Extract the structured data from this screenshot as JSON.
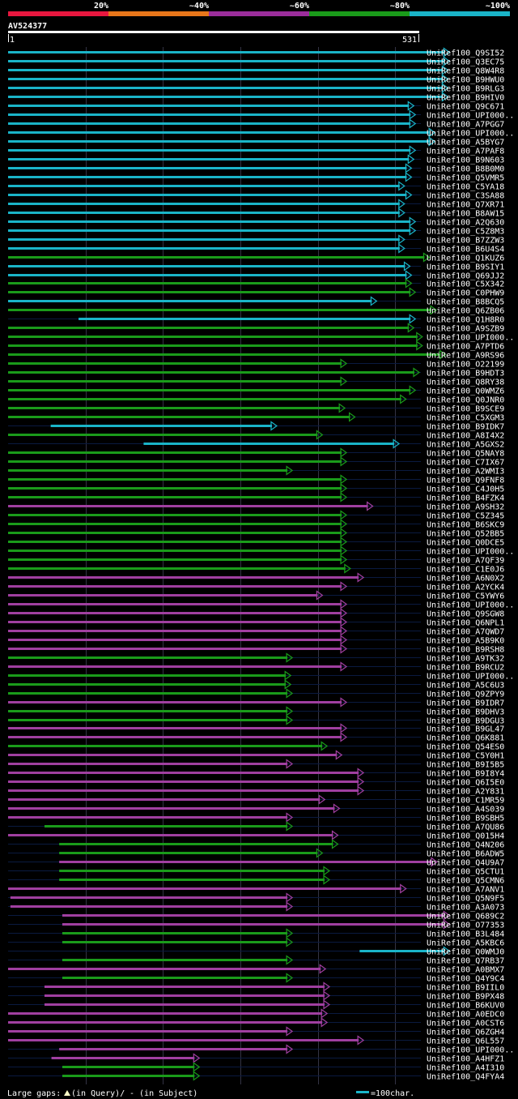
{
  "legend": {
    "labels": [
      "20%",
      "~40%",
      "~60%",
      "~80%",
      "~100%"
    ],
    "colors": [
      "#e8173f",
      "#e8761a",
      "#9b2d9b",
      "#1a9b1a",
      "#1ab4c8"
    ]
  },
  "query": {
    "id": "AV524377",
    "start": "1",
    "end": "531"
  },
  "palette": {
    "cyan": "#1ab4c8",
    "green": "#1a9b1a",
    "purple": "#a03fa0",
    "gap": "#ffffc8",
    "grid": "#334",
    "row_line": "#0a1a40"
  },
  "footer": {
    "large_gaps": "Large gaps:",
    "in_query": "(in Query)/",
    "in_subject": "- (in Subject)",
    "scale": "=100char."
  },
  "hits": [
    {
      "name": "UniRef100_Q9SI52",
      "color": "cyan",
      "start": 1,
      "end": 571
    },
    {
      "name": "UniRef100_Q3EC75",
      "color": "cyan",
      "start": 1,
      "end": 571
    },
    {
      "name": "UniRef100_Q8W4R8",
      "color": "cyan",
      "start": 1,
      "end": 569
    },
    {
      "name": "UniRef100_B9HWU0",
      "color": "cyan",
      "start": 1,
      "end": 569
    },
    {
      "name": "UniRef100_B9RLG3",
      "color": "cyan",
      "start": 1,
      "end": 569
    },
    {
      "name": "UniRef100_B9HIV0",
      "color": "cyan",
      "start": 1,
      "end": 569
    },
    {
      "name": "UniRef100_Q9C671",
      "color": "cyan",
      "start": 1,
      "end": 525
    },
    {
      "name": "UniRef100_UPI000..",
      "color": "cyan",
      "start": 1,
      "end": 527
    },
    {
      "name": "UniRef100_A7PGG7",
      "color": "cyan",
      "start": 1,
      "end": 527
    },
    {
      "name": "UniRef100_UPI000..",
      "color": "cyan",
      "start": 1,
      "end": 552
    },
    {
      "name": "UniRef100_A5BYG7",
      "color": "cyan",
      "start": 1,
      "end": 552
    },
    {
      "name": "UniRef100_A7PAF8",
      "color": "cyan",
      "start": 1,
      "end": 527
    },
    {
      "name": "UniRef100_B9N603",
      "color": "cyan",
      "start": 1,
      "end": 525
    },
    {
      "name": "UniRef100_B8B0M0",
      "color": "cyan",
      "start": 1,
      "end": 522
    },
    {
      "name": "UniRef100_Q5VMR5",
      "color": "cyan",
      "start": 1,
      "end": 522
    },
    {
      "name": "UniRef100_C5YA18",
      "color": "cyan",
      "start": 1,
      "end": 513
    },
    {
      "name": "UniRef100_C3SA88",
      "color": "cyan",
      "start": 1,
      "end": 522
    },
    {
      "name": "UniRef100_Q7XR71",
      "color": "cyan",
      "start": 1,
      "end": 513
    },
    {
      "name": "UniRef100_B8AW15",
      "color": "cyan",
      "start": 1,
      "end": 513
    },
    {
      "name": "UniRef100_A2Q630",
      "color": "cyan",
      "start": 1,
      "end": 527
    },
    {
      "name": "UniRef100_C5Z8M3",
      "color": "cyan",
      "start": 1,
      "end": 527
    },
    {
      "name": "UniRef100_B7ZZW3",
      "color": "cyan",
      "start": 1,
      "end": 513
    },
    {
      "name": "UniRef100_B6U4S4",
      "color": "cyan",
      "start": 1,
      "end": 513
    },
    {
      "name": "UniRef100_Q1KUZ6",
      "color": "green",
      "start": 1,
      "end": 545
    },
    {
      "name": "UniRef100_B9SIY1",
      "color": "cyan",
      "start": 1,
      "end": 520
    },
    {
      "name": "UniRef100_Q69JJ2",
      "color": "cyan",
      "start": 1,
      "end": 522
    },
    {
      "name": "UniRef100_C5X342",
      "color": "green",
      "start": 1,
      "end": 522
    },
    {
      "name": "UniRef100_C0PHW9",
      "color": "green",
      "start": 1,
      "end": 527
    },
    {
      "name": "UniRef100_B8BCQ5",
      "color": "cyan",
      "start": 1,
      "end": 477
    },
    {
      "name": "UniRef100_Q6ZB06",
      "color": "green",
      "start": 1,
      "end": 554
    },
    {
      "name": "UniRef100_Q1H8R0",
      "color": "cyan",
      "start": 92,
      "end": 527
    },
    {
      "name": "UniRef100_A9SZB9",
      "color": "green",
      "start": 1,
      "end": 525
    },
    {
      "name": "UniRef100_UPI000..",
      "color": "green",
      "start": 1,
      "end": 536
    },
    {
      "name": "UniRef100_A7PTD6",
      "color": "green",
      "start": 1,
      "end": 536
    },
    {
      "name": "UniRef100_A9RS96",
      "color": "green",
      "start": 1,
      "end": 566
    },
    {
      "name": "UniRef100_O22199",
      "color": "green",
      "start": 1,
      "end": 438
    },
    {
      "name": "UniRef100_B9HDT3",
      "color": "green",
      "start": 1,
      "end": 532
    },
    {
      "name": "UniRef100_Q8RY38",
      "color": "green",
      "start": 1,
      "end": 438
    },
    {
      "name": "UniRef100_Q0WMZ6",
      "color": "green",
      "start": 1,
      "end": 527
    },
    {
      "name": "UniRef100_Q0JNR0",
      "color": "green",
      "start": 1,
      "end": 515
    },
    {
      "name": "UniRef100_B9SCE9",
      "color": "green",
      "start": 1,
      "end": 436
    },
    {
      "name": "UniRef100_C5XGM3",
      "color": "green",
      "start": 1,
      "end": 449
    },
    {
      "name": "UniRef100_B9IDK7",
      "color": "cyan",
      "start": 56,
      "end": 348
    },
    {
      "name": "UniRef100_A8I4X2",
      "color": "green",
      "start": 1,
      "end": 407
    },
    {
      "name": "UniRef100_A5GXS2",
      "color": "cyan",
      "start": 176,
      "end": 506
    },
    {
      "name": "UniRef100_Q5NAY8",
      "color": "green",
      "start": 1,
      "end": 438
    },
    {
      "name": "UniRef100_C7IX67",
      "color": "green",
      "start": 1,
      "end": 438
    },
    {
      "name": "UniRef100_A2WMI3",
      "color": "green",
      "start": 1,
      "end": 368
    },
    {
      "name": "UniRef100_Q9FNF8",
      "color": "green",
      "start": 1,
      "end": 438
    },
    {
      "name": "UniRef100_C4J0H5",
      "color": "green",
      "start": 1,
      "end": 438
    },
    {
      "name": "UniRef100_B4FZK4",
      "color": "green",
      "start": 1,
      "end": 438
    },
    {
      "name": "UniRef100_A9SH32",
      "color": "purple",
      "start": 1,
      "end": 472
    },
    {
      "name": "UniRef100_C5Z345",
      "color": "green",
      "start": 1,
      "end": 438
    },
    {
      "name": "UniRef100_B6SKC9",
      "color": "green",
      "start": 1,
      "end": 438
    },
    {
      "name": "UniRef100_Q52BB5",
      "color": "green",
      "start": 1,
      "end": 438
    },
    {
      "name": "UniRef100_Q0DCE5",
      "color": "green",
      "start": 1,
      "end": 438
    },
    {
      "name": "UniRef100_UPI000..",
      "color": "green",
      "start": 1,
      "end": 438
    },
    {
      "name": "UniRef100_A7QF39",
      "color": "green",
      "start": 1,
      "end": 438
    },
    {
      "name": "UniRef100_C1E0J6",
      "color": "green",
      "start": 1,
      "end": 443
    },
    {
      "name": "UniRef100_A6N0X2",
      "color": "purple",
      "start": 1,
      "end": 460
    },
    {
      "name": "UniRef100_A2YCK4",
      "color": "purple",
      "start": 1,
      "end": 438
    },
    {
      "name": "UniRef100_C5YWY6",
      "color": "purple",
      "start": 1,
      "end": 407
    },
    {
      "name": "UniRef100_UPI000..",
      "color": "purple",
      "start": 1,
      "end": 438
    },
    {
      "name": "UniRef100_Q9SGW8",
      "color": "purple",
      "start": 1,
      "end": 438
    },
    {
      "name": "UniRef100_Q6NPL1",
      "color": "purple",
      "start": 1,
      "end": 438
    },
    {
      "name": "UniRef100_A7QWD7",
      "color": "purple",
      "start": 1,
      "end": 438
    },
    {
      "name": "UniRef100_A5B9K0",
      "color": "purple",
      "start": 1,
      "end": 438
    },
    {
      "name": "UniRef100_B9RSH8",
      "color": "purple",
      "start": 1,
      "end": 438
    },
    {
      "name": "UniRef100_A9TK32",
      "color": "green",
      "start": 1,
      "end": 368
    },
    {
      "name": "UniRef100_B9RCU2",
      "color": "purple",
      "start": 1,
      "end": 438
    },
    {
      "name": "UniRef100_UPI000..",
      "color": "green",
      "start": 1,
      "end": 366
    },
    {
      "name": "UniRef100_A5C6U3",
      "color": "green",
      "start": 1,
      "end": 366
    },
    {
      "name": "UniRef100_Q9ZPY9",
      "color": "green",
      "start": 1,
      "end": 368
    },
    {
      "name": "UniRef100_B9IDR7",
      "color": "purple",
      "start": 1,
      "end": 438
    },
    {
      "name": "UniRef100_B9DHV3",
      "color": "green",
      "start": 1,
      "end": 368
    },
    {
      "name": "UniRef100_B9DGU3",
      "color": "green",
      "start": 1,
      "end": 368
    },
    {
      "name": "UniRef100_B9GL47",
      "color": "purple",
      "start": 1,
      "end": 438
    },
    {
      "name": "UniRef100_Q6K881",
      "color": "purple",
      "start": 1,
      "end": 438
    },
    {
      "name": "UniRef100_Q54ES0",
      "color": "green",
      "start": 1,
      "end": 413
    },
    {
      "name": "UniRef100_C5Y0H1",
      "color": "purple",
      "start": 1,
      "end": 432
    },
    {
      "name": "UniRef100_B9I5B5",
      "color": "purple",
      "start": 1,
      "end": 368
    },
    {
      "name": "UniRef100_B9I8Y4",
      "color": "purple",
      "start": 1,
      "end": 460
    },
    {
      "name": "UniRef100_Q6I5E0",
      "color": "purple",
      "start": 1,
      "end": 460
    },
    {
      "name": "UniRef100_A2Y831",
      "color": "purple",
      "start": 1,
      "end": 460
    },
    {
      "name": "UniRef100_C1MR59",
      "color": "purple",
      "start": 1,
      "end": 410
    },
    {
      "name": "UniRef100_A4S039",
      "color": "purple",
      "start": 1,
      "end": 429
    },
    {
      "name": "UniRef100_B9SBH5",
      "color": "purple",
      "start": 1,
      "end": 368
    },
    {
      "name": "UniRef100_A7QU86",
      "color": "green",
      "start": 48,
      "end": 368
    },
    {
      "name": "UniRef100_Q015H4",
      "color": "purple",
      "start": 1,
      "end": 427
    },
    {
      "name": "UniRef100_Q4N206",
      "color": "green",
      "start": 67,
      "end": 427
    },
    {
      "name": "UniRef100_B6ADW5",
      "color": "green",
      "start": 67,
      "end": 407
    },
    {
      "name": "UniRef100_Q4U9A7",
      "color": "purple",
      "start": 67,
      "end": 555
    },
    {
      "name": "UniRef100_Q5CTU1",
      "color": "green",
      "start": 67,
      "end": 416
    },
    {
      "name": "UniRef100_Q5CMN6",
      "color": "green",
      "start": 67,
      "end": 416
    },
    {
      "name": "UniRef100_A7ANV1",
      "color": "purple",
      "start": 1,
      "end": 515
    },
    {
      "name": "UniRef100_Q5N9F5",
      "color": "purple",
      "start": 4,
      "end": 368
    },
    {
      "name": "UniRef100_A3A073",
      "color": "purple",
      "start": 4,
      "end": 368
    },
    {
      "name": "UniRef100_Q689C2",
      "color": "purple",
      "start": 71,
      "end": 571
    },
    {
      "name": "UniRef100_O77353",
      "color": "purple",
      "start": 71,
      "end": 571
    },
    {
      "name": "UniRef100_B3L484",
      "color": "green",
      "start": 71,
      "end": 368
    },
    {
      "name": "UniRef100_A5KBC6",
      "color": "green",
      "start": 71,
      "end": 368
    },
    {
      "name": "UniRef100_Q0WMJ0",
      "color": "cyan",
      "start": 455,
      "end": 571
    },
    {
      "name": "UniRef100_Q7RB37",
      "color": "green",
      "start": 71,
      "end": 368
    },
    {
      "name": "UniRef100_A0BMX7",
      "color": "purple",
      "start": 1,
      "end": 411
    },
    {
      "name": "UniRef100_Q4Y9C4",
      "color": "green",
      "start": 71,
      "end": 368
    },
    {
      "name": "UniRef100_B9IIL0",
      "color": "purple",
      "start": 48,
      "end": 416
    },
    {
      "name": "UniRef100_B9PX48",
      "color": "purple",
      "start": 48,
      "end": 416
    },
    {
      "name": "UniRef100_B6KUV0",
      "color": "purple",
      "start": 48,
      "end": 416
    },
    {
      "name": "UniRef100_A0EDC0",
      "color": "purple",
      "start": 1,
      "end": 413
    },
    {
      "name": "UniRef100_A0CST6",
      "color": "purple",
      "start": 1,
      "end": 413
    },
    {
      "name": "UniRef100_Q6ZGH4",
      "color": "purple",
      "start": 1,
      "end": 368
    },
    {
      "name": "UniRef100_Q6L557",
      "color": "purple",
      "start": 1,
      "end": 460
    },
    {
      "name": "UniRef100_UPI000..",
      "color": "purple",
      "start": 67,
      "end": 368
    },
    {
      "name": "UniRef100_A4HFZ1",
      "color": "purple",
      "start": 57,
      "end": 248
    },
    {
      "name": "UniRef100_A4I310",
      "color": "green",
      "start": 71,
      "end": 248
    },
    {
      "name": "UniRef100_Q4FYA4",
      "color": "green",
      "start": 71,
      "end": 248
    }
  ]
}
